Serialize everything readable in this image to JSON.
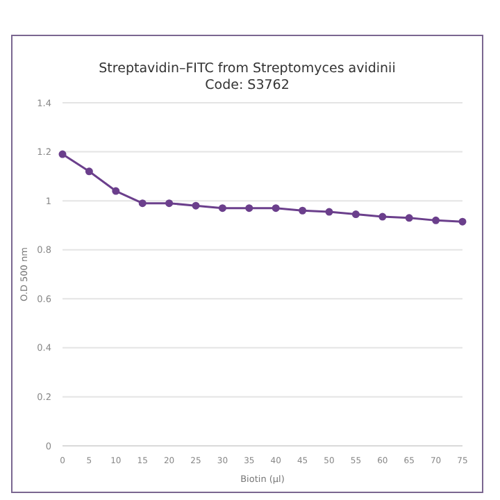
{
  "chart_data": {
    "type": "line",
    "title": "Streptavidin–FITC from Streptomyces avidinii",
    "subtitle": "Code: S3762",
    "xlabel": "Biotin (µl)",
    "ylabel": "O.D 500 nm",
    "categories": [
      "0",
      "5",
      "10",
      "15",
      "20",
      "25",
      "30",
      "35",
      "40",
      "45",
      "50",
      "55",
      "60",
      "65",
      "70",
      "75"
    ],
    "series": [
      {
        "color": "#6b3f8c",
        "values": [
          1.19,
          1.12,
          1.04,
          0.99,
          0.99,
          0.98,
          0.97,
          0.97,
          0.97,
          0.96,
          0.955,
          0.945,
          0.935,
          0.93,
          0.92,
          0.915
        ]
      }
    ],
    "ylim": [
      0,
      1.4
    ],
    "yticks": [
      0,
      0.2,
      0.4,
      0.6,
      0.8,
      1,
      1.2,
      1.4
    ],
    "grid": "y",
    "marker": "circle"
  }
}
